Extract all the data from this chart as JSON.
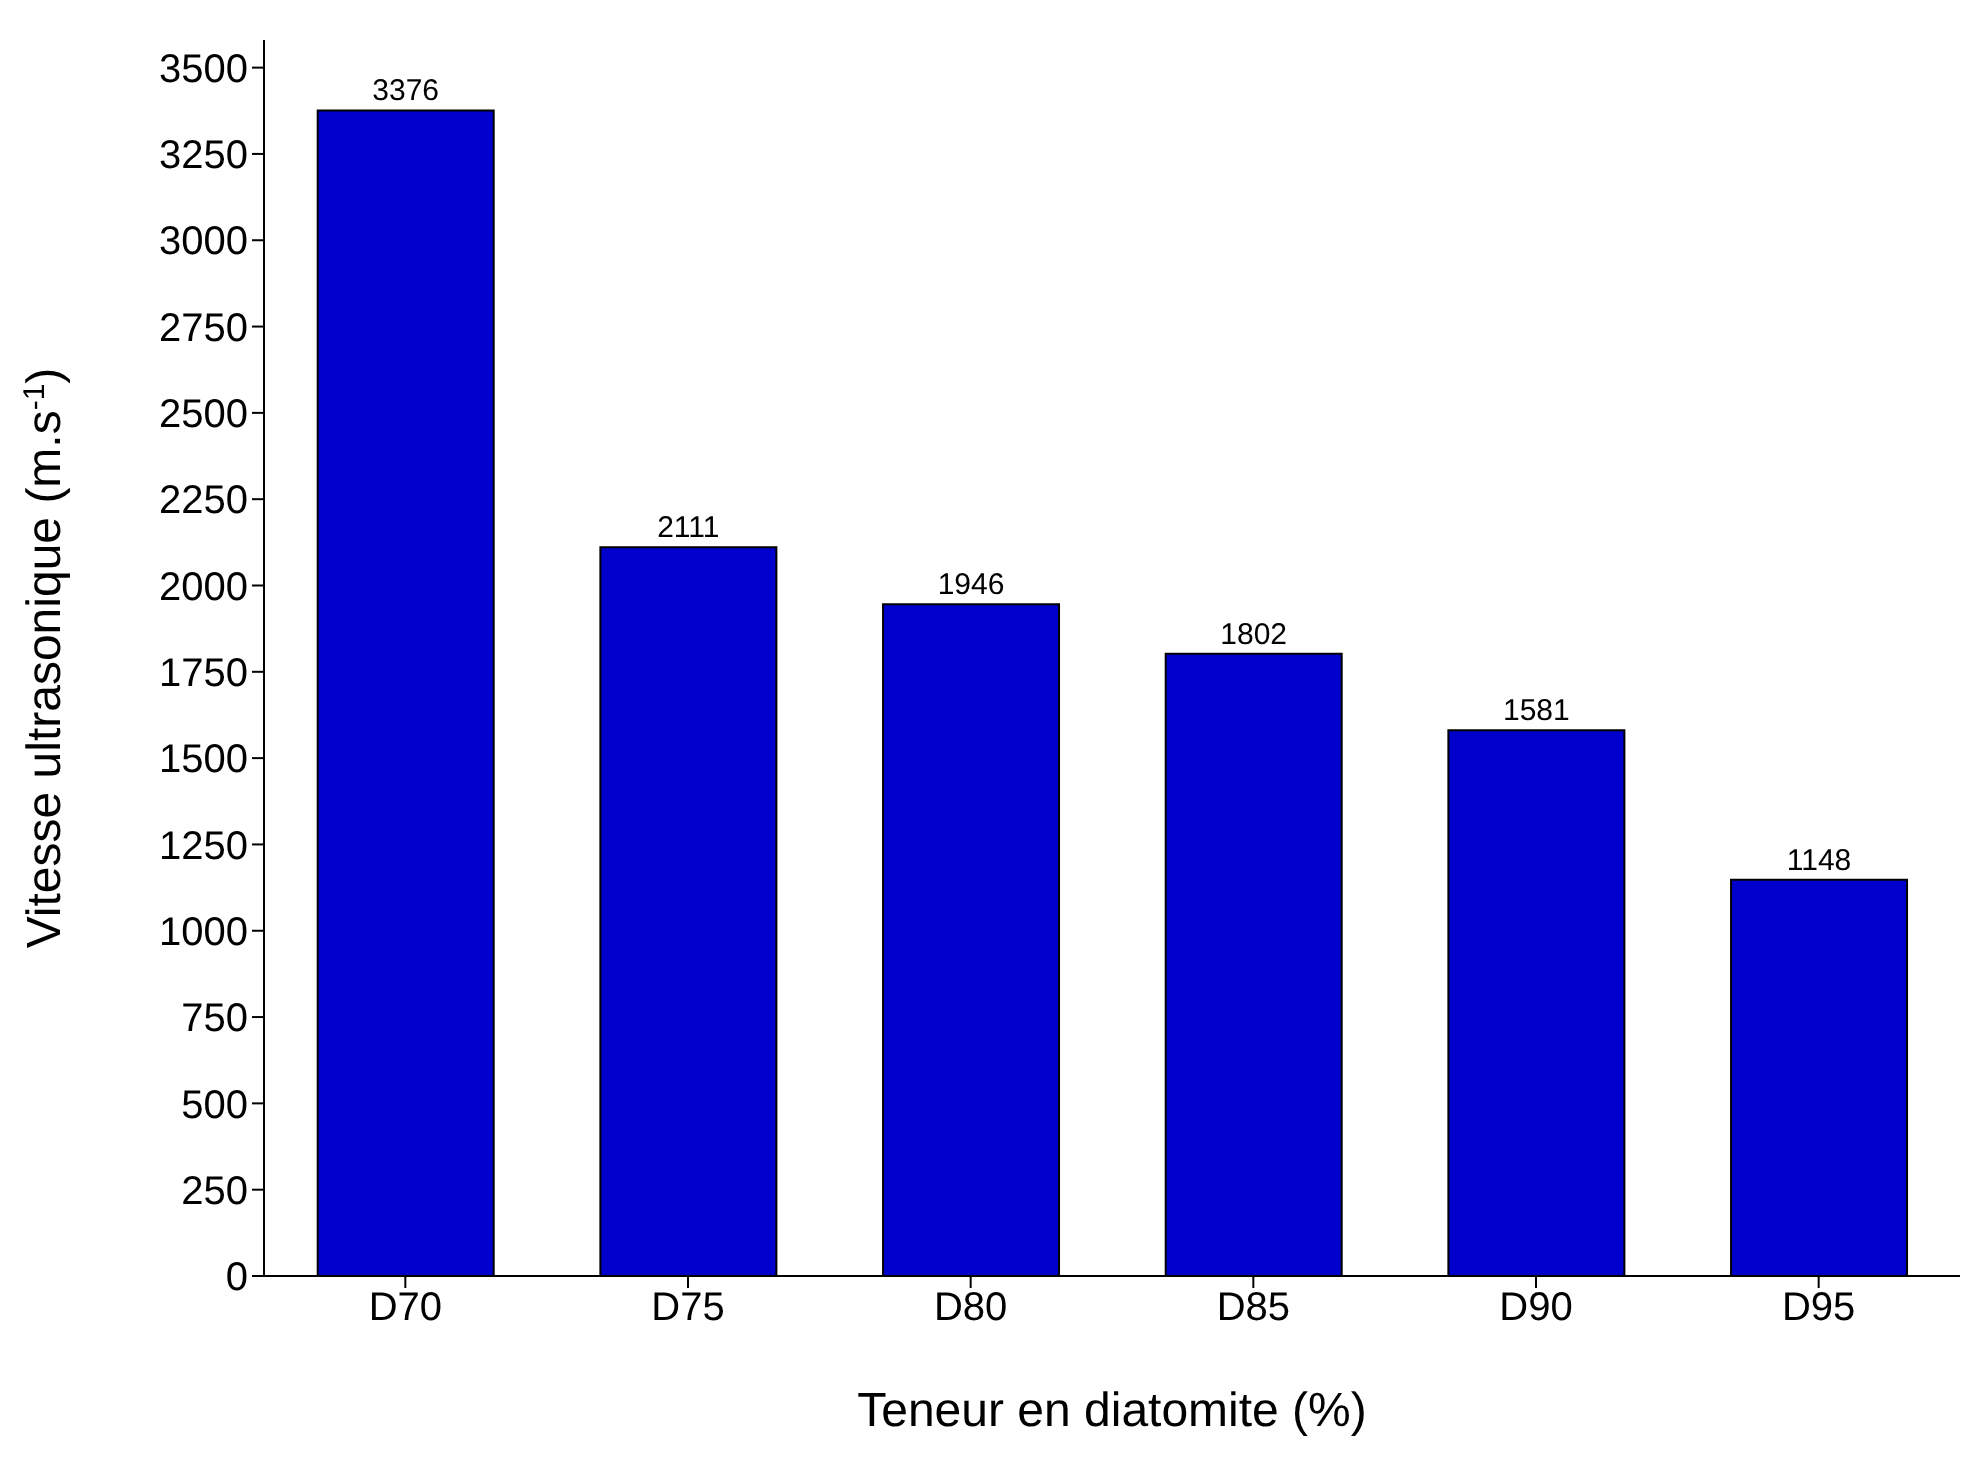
{
  "chart_data": {
    "type": "bar",
    "xlabel": "Teneur en diatomite (%)",
    "ylabel": "Vitesse ultrasonique (m.s$^{-1}$)",
    "categories": [
      "D70",
      "D75",
      "D80",
      "D85",
      "D90",
      "D95"
    ],
    "values": [
      3376,
      2111,
      1946,
      1802,
      1581,
      1148
    ],
    "color": "#0000cc",
    "ylim": [
      0,
      3580
    ],
    "yticks": [
      0,
      250,
      500,
      750,
      1000,
      1250,
      1500,
      1750,
      2000,
      2250,
      2500,
      2750,
      3000,
      3250,
      3500
    ],
    "data_labels": true,
    "grid": false
  }
}
